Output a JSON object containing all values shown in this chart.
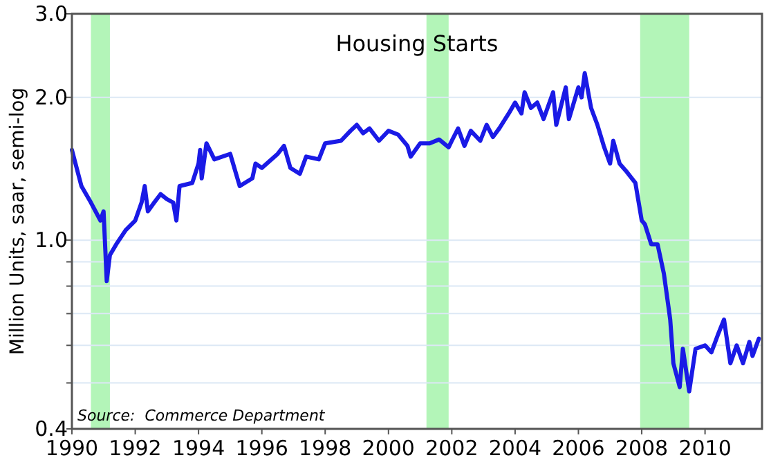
{
  "chart_data": {
    "type": "line",
    "title": "Housing Starts",
    "ylabel": "Million Units, saar, semi-log",
    "annotations": [
      "Source:  Commerce Department"
    ],
    "log": "y",
    "grid": "y",
    "line_style": "solid",
    "xlim": [
      1990,
      2011.8
    ],
    "xticks": [
      1990,
      1992,
      1994,
      1996,
      1998,
      2000,
      2002,
      2004,
      2006,
      2008,
      2010
    ],
    "ylim": [
      0.4,
      3.0
    ],
    "yticks": [
      {
        "value": 0.4,
        "label": "0.4"
      },
      {
        "value": 0.5,
        "label": null
      },
      {
        "value": 0.6,
        "label": null
      },
      {
        "value": 0.7,
        "label": null
      },
      {
        "value": 0.8,
        "label": null
      },
      {
        "value": 0.9,
        "label": null
      },
      {
        "value": 1.0,
        "label": "1.0"
      },
      {
        "value": 2.0,
        "label": "2.0"
      },
      {
        "value": 3.0,
        "label": "3.0"
      }
    ],
    "bands": [
      {
        "axis": "x",
        "from": 1990.6,
        "to": 1991.2,
        "color": "#b3f5b8"
      },
      {
        "axis": "x",
        "from": 2001.2,
        "to": 2001.9,
        "color": "#b3f5b8"
      },
      {
        "axis": "x",
        "from": 2007.95,
        "to": 2009.5,
        "color": "#b3f5b8"
      }
    ],
    "series": [
      {
        "color": "#1a1ae6",
        "x": [
          1990.0,
          1990.3,
          1990.6,
          1990.9,
          1991.0,
          1991.1,
          1991.2,
          1991.4,
          1991.7,
          1992.0,
          1992.2,
          1992.3,
          1992.4,
          1992.6,
          1992.8,
          1993.0,
          1993.2,
          1993.3,
          1993.4,
          1993.8,
          1994.0,
          1994.05,
          1994.1,
          1994.25,
          1994.5,
          1995.0,
          1995.3,
          1995.7,
          1995.8,
          1996.0,
          1996.5,
          1996.7,
          1996.9,
          1997.2,
          1997.4,
          1997.8,
          1998.0,
          1998.5,
          1998.8,
          1999.0,
          1999.2,
          1999.4,
          1999.7,
          2000.0,
          2000.3,
          2000.6,
          2000.7,
          2001.0,
          2001.3,
          2001.6,
          2001.9,
          2002.0,
          2002.2,
          2002.4,
          2002.6,
          2002.9,
          2003.1,
          2003.3,
          2003.5,
          2003.8,
          2004.0,
          2004.2,
          2004.3,
          2004.5,
          2004.7,
          2004.9,
          2005.2,
          2005.3,
          2005.6,
          2005.7,
          2006.0,
          2006.1,
          2006.2,
          2006.4,
          2006.6,
          2006.8,
          2007.0,
          2007.1,
          2007.3,
          2007.5,
          2007.8,
          2008.0,
          2008.1,
          2008.3,
          2008.5,
          2008.7,
          2008.9,
          2009.0,
          2009.2,
          2009.3,
          2009.5,
          2009.7,
          2010.0,
          2010.2,
          2010.4,
          2010.6,
          2010.8,
          2011.0,
          2011.2,
          2011.4,
          2011.5,
          2011.7
        ],
        "values": [
          1.55,
          1.3,
          1.2,
          1.1,
          1.15,
          0.82,
          0.93,
          0.98,
          1.05,
          1.1,
          1.2,
          1.3,
          1.15,
          1.2,
          1.25,
          1.22,
          1.2,
          1.1,
          1.3,
          1.32,
          1.45,
          1.55,
          1.35,
          1.6,
          1.48,
          1.52,
          1.3,
          1.35,
          1.45,
          1.42,
          1.52,
          1.58,
          1.42,
          1.38,
          1.5,
          1.48,
          1.6,
          1.62,
          1.7,
          1.75,
          1.68,
          1.72,
          1.62,
          1.7,
          1.67,
          1.58,
          1.5,
          1.6,
          1.6,
          1.63,
          1.57,
          1.62,
          1.72,
          1.58,
          1.7,
          1.62,
          1.75,
          1.65,
          1.72,
          1.85,
          1.95,
          1.85,
          2.05,
          1.9,
          1.95,
          1.8,
          2.05,
          1.75,
          2.1,
          1.8,
          2.1,
          2.0,
          2.25,
          1.9,
          1.75,
          1.58,
          1.45,
          1.62,
          1.45,
          1.4,
          1.32,
          1.1,
          1.08,
          0.98,
          0.98,
          0.85,
          0.68,
          0.55,
          0.49,
          0.59,
          0.48,
          0.59,
          0.6,
          0.58,
          0.63,
          0.68,
          0.55,
          0.6,
          0.55,
          0.61,
          0.57,
          0.62
        ]
      }
    ]
  }
}
